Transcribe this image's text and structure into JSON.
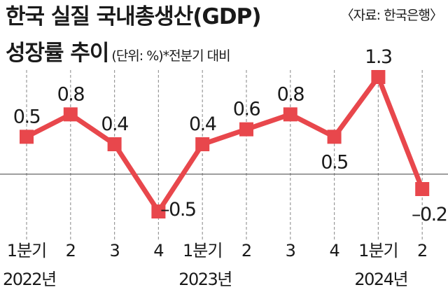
{
  "header": {
    "title_line1": "한국 실질 국내총생산(GDP)",
    "title_line2": "성장률 추이",
    "unit_note": "(단위: %)*전분기 대비",
    "source": "〈자료: 한국은행〉"
  },
  "colors": {
    "line": "#e8474c",
    "marker": "#e8474c",
    "text": "#1a1a1a",
    "grid": "#9a9a9a"
  },
  "chart_data": {
    "type": "line",
    "title": "한국 실질 국내총생산(GDP) 성장률 추이",
    "unit": "%",
    "note": "전분기 대비",
    "categories": [
      "1분기",
      "2",
      "3",
      "4",
      "1분기",
      "2",
      "3",
      "4",
      "1분기",
      "2"
    ],
    "years": [
      {
        "label": "2022년",
        "start_index": 0
      },
      {
        "label": "2023년",
        "start_index": 4
      },
      {
        "label": "2024년",
        "start_index": 8
      }
    ],
    "values": [
      0.5,
      0.8,
      0.4,
      -0.5,
      0.4,
      0.6,
      0.8,
      0.5,
      1.3,
      -0.2
    ],
    "data_labels": [
      "0.5",
      "0.8",
      "0.4",
      "–0.5",
      "0.4",
      "0.6",
      "0.8",
      "0.5",
      "1.3",
      "–0.2"
    ],
    "ylim": [
      -0.5,
      1.3
    ],
    "baseline": 0,
    "grid": "vertical dashed",
    "legend": "none"
  }
}
